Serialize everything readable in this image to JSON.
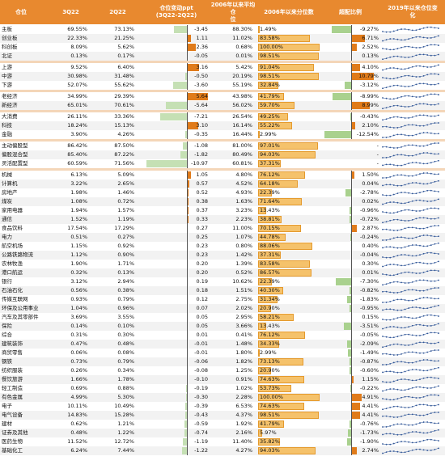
{
  "header": {
    "name": "仓位",
    "q3_22": "3Q22",
    "q2_22": "2Q22",
    "change": "仓位变动ppt\n(3Q22-2Q22)",
    "avg": "2006年以来平均仓\n位",
    "pctile": "2006年以来分位数",
    "overweight": "超配比例",
    "trend": "2019年以来仓位变\n化"
  },
  "colors": {
    "header_bg": "#e8892f",
    "neg_bar": "#c5e0b4",
    "pos_bar": "#e07b1a",
    "pct_bar": "#f5c26b",
    "spark": "#2f5597",
    "group_sep": "#f4d6b8"
  },
  "groups": [
    {
      "rows": [
        {
          "name": "主板",
          "q3": "69.55%",
          "q2": "73.13%",
          "chg": -3.45,
          "chg_t": "-3.45",
          "avg": "88.30%",
          "pct": 1.49,
          "pct_t": "1.49%",
          "ow": -9.27,
          "ow_t": "-9.27%"
        },
        {
          "name": "创业板",
          "q3": "22.33%",
          "q2": "21.25%",
          "chg": 1.11,
          "chg_t": "1.11",
          "avg": "11.02%",
          "pct": 83.58,
          "pct_t": "83.58%",
          "ow": 6.71,
          "ow_t": "6.71%"
        },
        {
          "name": "科创板",
          "q3": "8.09%",
          "q2": "5.62%",
          "chg": 2.36,
          "chg_t": "2.36",
          "avg": "0.68%",
          "pct": 100.0,
          "pct_t": "100.00%",
          "ow": 2.52,
          "ow_t": "2.52%"
        },
        {
          "name": "北证",
          "q3": "0.13%",
          "q2": "0.17%",
          "chg": -0.05,
          "chg_t": "-0.05",
          "avg": "0.01%",
          "pct": 98.51,
          "pct_t": "98.51%",
          "ow": 0.13,
          "ow_t": "0.13%"
        }
      ]
    },
    {
      "rows": [
        {
          "name": "上游",
          "q3": "9.52%",
          "q2": "6.40%",
          "chg": 3.16,
          "chg_t": "3.16",
          "avg": "5.42%",
          "pct": 91.04,
          "pct_t": "91.04%",
          "ow": 4.1,
          "ow_t": "4.10%"
        },
        {
          "name": "中游",
          "q3": "30.98%",
          "q2": "31.48%",
          "chg": -0.5,
          "chg_t": "-0.50",
          "avg": "20.19%",
          "pct": 98.51,
          "pct_t": "98.51%",
          "ow": 10.79,
          "ow_t": "10.79%"
        },
        {
          "name": "下游",
          "q3": "52.07%",
          "q2": "55.62%",
          "chg": -3.6,
          "chg_t": "-3.60",
          "avg": "55.19%",
          "pct": 32.84,
          "pct_t": "32.84%",
          "ow": -3.12,
          "ow_t": "-3.12%"
        }
      ]
    },
    {
      "rows": [
        {
          "name": "老经济",
          "q3": "34.99%",
          "q2": "29.39%",
          "chg": 5.64,
          "chg_t": "5.64",
          "avg": "43.98%",
          "pct": 41.79,
          "pct_t": "41.79%",
          "ow": -8.99,
          "ow_t": "-8.99%"
        },
        {
          "name": "新经济",
          "q3": "65.01%",
          "q2": "70.61%",
          "chg": -5.64,
          "chg_t": "-5.64",
          "avg": "56.02%",
          "pct": 59.7,
          "pct_t": "59.70%",
          "ow": 8.99,
          "ow_t": "8.99%"
        }
      ]
    },
    {
      "rows": [
        {
          "name": "大消费",
          "q3": "26.11%",
          "q2": "33.36%",
          "chg": -7.21,
          "chg_t": "-7.21",
          "avg": "26.54%",
          "pct": 49.25,
          "pct_t": "49.25%",
          "ow": -0.43,
          "ow_t": "-0.43%"
        },
        {
          "name": "科技",
          "q3": "18.24%",
          "q2": "15.13%",
          "chg": 3.1,
          "chg_t": "3.10",
          "avg": "16.14%",
          "pct": 55.22,
          "pct_t": "55.22%",
          "ow": 2.1,
          "ow_t": "2.10%"
        },
        {
          "name": "金融",
          "q3": "3.90%",
          "q2": "4.26%",
          "chg": -0.35,
          "chg_t": "-0.35",
          "avg": "16.44%",
          "pct": 2.99,
          "pct_t": "2.99%",
          "ow": -12.54,
          "ow_t": "-12.54%"
        }
      ]
    },
    {
      "rows": [
        {
          "name": "主动偏股型",
          "q3": "86.42%",
          "q2": "87.50%",
          "chg": -1.08,
          "chg_t": "-1.08",
          "avg": "81.00%",
          "pct": 97.01,
          "pct_t": "97.01%",
          "ow": null,
          "ow_t": "-"
        },
        {
          "name": "偏股混合型",
          "q3": "85.40%",
          "q2": "87.22%",
          "chg": -1.82,
          "chg_t": "-1.82",
          "avg": "80.49%",
          "pct": 94.03,
          "pct_t": "94.03%",
          "ow": null,
          "ow_t": "-"
        },
        {
          "name": "灵活配置型",
          "q3": "60.59%",
          "q2": "71.56%",
          "chg": -10.97,
          "chg_t": "-10.97",
          "avg": "60.81%",
          "pct": 37.31,
          "pct_t": "37.31%",
          "ow": null,
          "ow_t": "-"
        }
      ]
    },
    {
      "rows": [
        {
          "name": "机械",
          "q3": "6.13%",
          "q2": "5.09%",
          "chg": 1.05,
          "chg_t": "1.05",
          "avg": "4.80%",
          "pct": 76.12,
          "pct_t": "76.12%",
          "ow": 1.5,
          "ow_t": "1.50%"
        },
        {
          "name": "计算机",
          "q3": "3.22%",
          "q2": "2.65%",
          "chg": 0.57,
          "chg_t": "0.57",
          "avg": "4.52%",
          "pct": 64.18,
          "pct_t": "64.18%",
          "ow": 0.04,
          "ow_t": "0.04%"
        },
        {
          "name": "房地产",
          "q3": "1.98%",
          "q2": "1.46%",
          "chg": 0.52,
          "chg_t": "0.52",
          "avg": "4.93%",
          "pct": 22.39,
          "pct_t": "22.39%",
          "ow": -2.78,
          "ow_t": "-2.78%"
        },
        {
          "name": "煤炭",
          "q3": "1.08%",
          "q2": "0.72%",
          "chg": 0.38,
          "chg_t": "0.38",
          "avg": "1.63%",
          "pct": 71.64,
          "pct_t": "71.64%",
          "ow": 0.02,
          "ow_t": "0.02%"
        },
        {
          "name": "家用电器",
          "q3": "1.94%",
          "q2": "1.57%",
          "chg": 0.37,
          "chg_t": "0.37",
          "avg": "3.23%",
          "pct": 13.43,
          "pct_t": "13.43%",
          "ow": -0.96,
          "ow_t": "-0.96%"
        },
        {
          "name": "通信",
          "q3": "1.52%",
          "q2": "1.19%",
          "chg": 0.33,
          "chg_t": "0.33",
          "avg": "2.23%",
          "pct": 38.81,
          "pct_t": "38.81%",
          "ow": -0.72,
          "ow_t": "-0.72%"
        },
        {
          "name": "食品饮料",
          "q3": "17.54%",
          "q2": "17.29%",
          "chg": 0.27,
          "chg_t": "0.27",
          "avg": "11.00%",
          "pct": 70.15,
          "pct_t": "70.15%",
          "ow": 2.87,
          "ow_t": "2.87%"
        },
        {
          "name": "电力",
          "q3": "0.51%",
          "q2": "0.27%",
          "chg": 0.25,
          "chg_t": "0.25",
          "avg": "1.07%",
          "pct": 44.78,
          "pct_t": "44.78%",
          "ow": -0.24,
          "ow_t": "-0.24%"
        },
        {
          "name": "航空机场",
          "q3": "1.15%",
          "q2": "0.92%",
          "chg": 0.23,
          "chg_t": "0.23",
          "avg": "0.80%",
          "pct": 88.06,
          "pct_t": "88.06%",
          "ow": 0.4,
          "ow_t": "0.40%"
        },
        {
          "name": "公路铁路物流",
          "q3": "1.12%",
          "q2": "0.90%",
          "chg": 0.23,
          "chg_t": "0.23",
          "avg": "1.42%",
          "pct": 37.31,
          "pct_t": "37.31%",
          "ow": -0.04,
          "ow_t": "-0.04%"
        },
        {
          "name": "农林牧渔",
          "q3": "1.90%",
          "q2": "1.71%",
          "chg": 0.2,
          "chg_t": "0.20",
          "avg": "1.39%",
          "pct": 83.58,
          "pct_t": "83.58%",
          "ow": 0.3,
          "ow_t": "0.30%"
        },
        {
          "name": "港口航运",
          "q3": "0.32%",
          "q2": "0.13%",
          "chg": 0.2,
          "chg_t": "0.20",
          "avg": "0.52%",
          "pct": 86.57,
          "pct_t": "86.57%",
          "ow": 0.01,
          "ow_t": "0.01%"
        },
        {
          "name": "银行",
          "q3": "3.12%",
          "q2": "2.94%",
          "chg": 0.19,
          "chg_t": "0.19",
          "avg": "10.62%",
          "pct": 22.39,
          "pct_t": "22.39%",
          "ow": -7.3,
          "ow_t": "-7.30%"
        },
        {
          "name": "石油石化",
          "q3": "0.56%",
          "q2": "0.38%",
          "chg": 0.18,
          "chg_t": "0.18",
          "avg": "1.51%",
          "pct": 40.3,
          "pct_t": "40.30%",
          "ow": -0.82,
          "ow_t": "-0.82%"
        },
        {
          "name": "传媒互联网",
          "q3": "0.93%",
          "q2": "0.79%",
          "chg": 0.12,
          "chg_t": "0.12",
          "avg": "2.75%",
          "pct": 31.34,
          "pct_t": "31.34%",
          "ow": -1.83,
          "ow_t": "-1.83%"
        },
        {
          "name": "环保及公用事业",
          "q3": "1.04%",
          "q2": "0.96%",
          "chg": 0.07,
          "chg_t": "0.07",
          "avg": "2.02%",
          "pct": 20.9,
          "pct_t": "20.90%",
          "ow": -0.95,
          "ow_t": "-0.95%"
        },
        {
          "name": "汽车及其零部件",
          "q3": "3.69%",
          "q2": "3.55%",
          "chg": 0.05,
          "chg_t": "0.05",
          "avg": "2.95%",
          "pct": 58.21,
          "pct_t": "58.21%",
          "ow": 0.15,
          "ow_t": "0.15%"
        },
        {
          "name": "保险",
          "q3": "0.14%",
          "q2": "0.10%",
          "chg": 0.05,
          "chg_t": "0.05",
          "avg": "3.66%",
          "pct": 13.43,
          "pct_t": "13.43%",
          "ow": -3.51,
          "ow_t": "-3.51%"
        },
        {
          "name": "综合",
          "q3": "0.31%",
          "q2": "0.30%",
          "chg": 0.01,
          "chg_t": "0.01",
          "avg": "0.41%",
          "pct": 76.12,
          "pct_t": "76.12%",
          "ow": -0.05,
          "ow_t": "-0.05%"
        },
        {
          "name": "建筑装饰",
          "q3": "0.47%",
          "q2": "0.48%",
          "chg": -0.01,
          "chg_t": "-0.01",
          "avg": "1.48%",
          "pct": 34.33,
          "pct_t": "34.33%",
          "ow": -2.09,
          "ow_t": "-2.09%"
        },
        {
          "name": "商贸零售",
          "q3": "0.06%",
          "q2": "0.08%",
          "chg": -0.01,
          "chg_t": "-0.01",
          "avg": "1.80%",
          "pct": 2.99,
          "pct_t": "2.99%",
          "ow": -1.49,
          "ow_t": "-1.49%"
        },
        {
          "name": "钢铁",
          "q3": "0.73%",
          "q2": "0.79%",
          "chg": -0.06,
          "chg_t": "-0.06",
          "avg": "1.82%",
          "pct": 73.13,
          "pct_t": "73.13%",
          "ow": -0.87,
          "ow_t": "-0.87%"
        },
        {
          "name": "纺织服装",
          "q3": "0.26%",
          "q2": "0.34%",
          "chg": -0.08,
          "chg_t": "-0.08",
          "avg": "1.25%",
          "pct": 20.9,
          "pct_t": "20.90%",
          "ow": -0.6,
          "ow_t": "-0.60%"
        },
        {
          "name": "餐饮旅游",
          "q3": "1.66%",
          "q2": "1.78%",
          "chg": -0.1,
          "chg_t": "-0.10",
          "avg": "0.91%",
          "pct": 74.63,
          "pct_t": "74.63%",
          "ow": 1.15,
          "ow_t": "1.15%"
        },
        {
          "name": "轻工制造",
          "q3": "0.69%",
          "q2": "0.88%",
          "chg": -0.19,
          "chg_t": "-0.19",
          "avg": "1.02%",
          "pct": 53.73,
          "pct_t": "53.73%",
          "ow": -0.22,
          "ow_t": "-0.22%"
        },
        {
          "name": "有色金属",
          "q3": "4.99%",
          "q2": "5.30%",
          "chg": -0.3,
          "chg_t": "-0.30",
          "avg": "2.28%",
          "pct": 100.0,
          "pct_t": "100.00%",
          "ow": 4.91,
          "ow_t": "4.91%"
        },
        {
          "name": "电子",
          "q3": "10.11%",
          "q2": "10.49%",
          "chg": -0.39,
          "chg_t": "-0.39",
          "avg": "6.53%",
          "pct": 74.63,
          "pct_t": "74.63%",
          "ow": 4.41,
          "ow_t": "4.41%"
        },
        {
          "name": "电气设备",
          "q3": "14.83%",
          "q2": "15.28%",
          "chg": -0.43,
          "chg_t": "-0.43",
          "avg": "4.37%",
          "pct": 98.51,
          "pct_t": "98.51%",
          "ow": 4.41,
          "ow_t": "4.41%"
        },
        {
          "name": "建材",
          "q3": "0.62%",
          "q2": "1.21%",
          "chg": -0.59,
          "chg_t": "-0.59",
          "avg": "1.92%",
          "pct": 41.79,
          "pct_t": "41.79%",
          "ow": -0.76,
          "ow_t": "-0.76%"
        },
        {
          "name": "证券及其他",
          "q3": "0.48%",
          "q2": "1.22%",
          "chg": -0.74,
          "chg_t": "-0.74",
          "avg": "2.16%",
          "pct": 5.97,
          "pct_t": "5.97%",
          "ow": -1.73,
          "ow_t": "-1.73%"
        },
        {
          "name": "医药生物",
          "q3": "11.52%",
          "q2": "12.72%",
          "chg": -1.19,
          "chg_t": "-1.19",
          "avg": "11.40%",
          "pct": 35.82,
          "pct_t": "35.82%",
          "ow": -1.9,
          "ow_t": "-1.90%"
        },
        {
          "name": "基础化工",
          "q3": "6.24%",
          "q2": "7.44%",
          "chg": -1.22,
          "chg_t": "-1.22",
          "avg": "4.27%",
          "pct": 94.03,
          "pct_t": "94.03%",
          "ow": 2.74,
          "ow_t": "2.74%"
        }
      ]
    }
  ],
  "chart_data": {
    "type": "table",
    "columns": [
      "仓位",
      "3Q22",
      "2Q22",
      "仓位变动ppt(3Q22-2Q22)",
      "2006年以来平均仓位",
      "2006年以来分位数",
      "超配比例",
      "2019年以来仓位变化"
    ],
    "bar_columns": {
      "change_range": [
        -11,
        6
      ],
      "percentile_range": [
        0,
        100
      ],
      "overweight_range": [
        -13,
        11
      ]
    }
  }
}
